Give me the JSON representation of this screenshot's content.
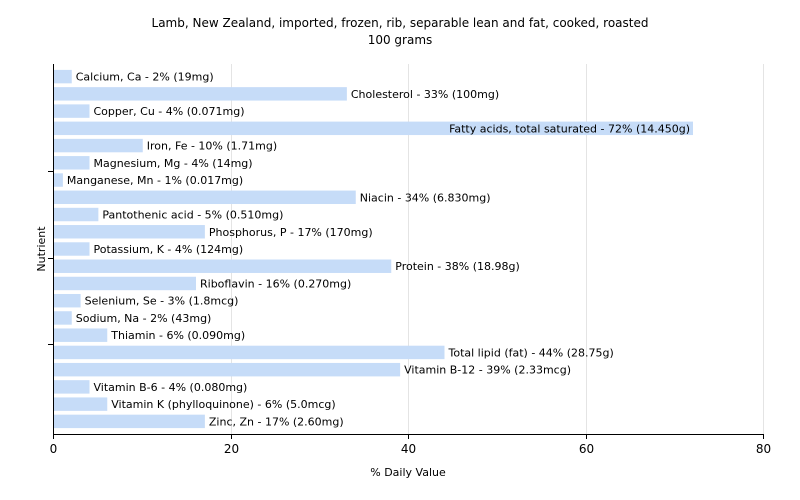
{
  "chart_data": {
    "type": "bar",
    "orientation": "horizontal",
    "title": "Lamb, New Zealand, imported, frozen, rib, separable lean and fat, cooked, roasted",
    "subtitle": "100 grams",
    "xlabel": "% Daily Value",
    "ylabel": "Nutrient",
    "xlim": [
      0,
      80
    ],
    "xticks": [
      "0",
      "20",
      "40",
      "60",
      "80"
    ],
    "grid": true,
    "bar_color": "#c6dcf8",
    "categories": [
      "Calcium, Ca",
      "Cholesterol",
      "Copper, Cu",
      "Fatty acids, total saturated",
      "Iron, Fe",
      "Magnesium, Mg",
      "Manganese, Mn",
      "Niacin",
      "Pantothenic acid",
      "Phosphorus, P",
      "Potassium, K",
      "Protein",
      "Riboflavin",
      "Selenium, Se",
      "Sodium, Na",
      "Thiamin",
      "Total lipid (fat)",
      "Vitamin B-12",
      "Vitamin B-6",
      "Vitamin K (phylloquinone)",
      "Zinc, Zn"
    ],
    "values": [
      2,
      33,
      4,
      72,
      10,
      4,
      1,
      34,
      5,
      17,
      4,
      38,
      16,
      3,
      2,
      6,
      44,
      39,
      4,
      6,
      17
    ],
    "labels": [
      "Calcium, Ca - 2% (19mg)",
      "Cholesterol - 33% (100mg)",
      "Copper, Cu - 4% (0.071mg)",
      "Fatty acids, total saturated - 72% (14.450g)",
      "Iron, Fe - 10% (1.71mg)",
      "Magnesium, Mg - 4% (14mg)",
      "Manganese, Mn - 1% (0.017mg)",
      "Niacin - 34% (6.830mg)",
      "Pantothenic acid - 5% (0.510mg)",
      "Phosphorus, P - 17% (170mg)",
      "Potassium, K - 4% (124mg)",
      "Protein - 38% (18.98g)",
      "Riboflavin - 16% (0.270mg)",
      "Selenium, Se - 3% (1.8mcg)",
      "Sodium, Na - 2% (43mg)",
      "Thiamin - 6% (0.090mg)",
      "Total lipid (fat) - 44% (28.75g)",
      "Vitamin B-12 - 39% (2.33mcg)",
      "Vitamin B-6 - 4% (0.080mg)",
      "Vitamin K (phylloquinone) - 6% (5.0mcg)",
      "Zinc, Zn - 17% (2.60mg)"
    ]
  }
}
